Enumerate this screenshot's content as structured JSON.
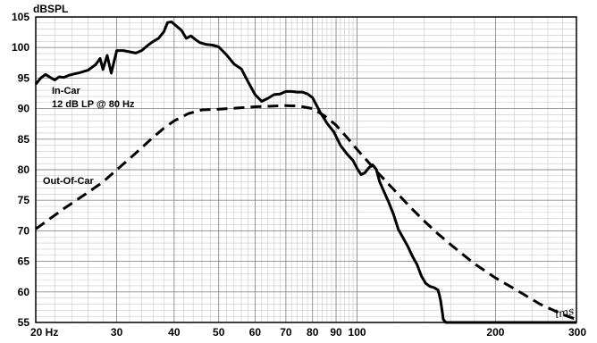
{
  "chart_data": {
    "type": "line",
    "ylabel": "dBSPL",
    "xscale": "log",
    "xlim": [
      20,
      300
    ],
    "ylim": [
      55,
      105
    ],
    "grid": true,
    "x_tick_labels": [
      "20 Hz",
      "30",
      "40",
      "50",
      "60",
      "70",
      "80",
      "90",
      "100",
      "200",
      "300"
    ],
    "x_tick_values": [
      20,
      30,
      40,
      50,
      60,
      70,
      80,
      90,
      100,
      200,
      300
    ],
    "y_tick_values": [
      55,
      60,
      65,
      70,
      75,
      80,
      85,
      90,
      95,
      100,
      105
    ],
    "series": [
      {
        "name": "In-Car",
        "style": "solid",
        "color": "#000000",
        "x": [
          20,
          20.5,
          21,
          21.5,
          22,
          22.5,
          23,
          23.5,
          24,
          25,
          26,
          27,
          27.6,
          28,
          28.6,
          29.2,
          30,
          31,
          32,
          33,
          34,
          35,
          36,
          37,
          38,
          38.7,
          39.5,
          40.5,
          41.5,
          42.5,
          43.5,
          44.5,
          45.5,
          47,
          48.5,
          50,
          52,
          54,
          56,
          58,
          60,
          62,
          64,
          66,
          68,
          70,
          72,
          74,
          76,
          78,
          80,
          83,
          86,
          89,
          92,
          95,
          98,
          100,
          102,
          104,
          106,
          108,
          110,
          112,
          114,
          117,
          120,
          123,
          126,
          129,
          132,
          135,
          138,
          141,
          144,
          147,
          150,
          151,
          152,
          153,
          154,
          156,
          160,
          170,
          200,
          250,
          300
        ],
        "values": [
          94,
          95,
          95.6,
          95.1,
          94.7,
          95.2,
          95.1,
          95.4,
          95.6,
          95.9,
          96.3,
          97.2,
          98.2,
          96.4,
          98.7,
          95.8,
          99.5,
          99.5,
          99.3,
          99.1,
          99.5,
          100.3,
          101,
          101.5,
          102.6,
          104.1,
          104.2,
          103.5,
          102.8,
          101.5,
          101.9,
          101.3,
          100.8,
          100.5,
          100.4,
          100.1,
          98.8,
          97.3,
          96.5,
          94.3,
          92.3,
          91.2,
          91.7,
          92.3,
          92.4,
          92.8,
          92.8,
          92.7,
          92.7,
          92.4,
          91.8,
          89.5,
          87.6,
          86.2,
          84,
          82.6,
          81.5,
          80.2,
          79.2,
          79.5,
          80.3,
          80.8,
          80.1,
          78,
          76.7,
          74.8,
          72.7,
          70.2,
          68.8,
          67.4,
          65.8,
          64.5,
          62.6,
          61.4,
          60.9,
          60.7,
          60.3,
          59.5,
          58.5,
          57,
          55.5,
          55,
          55,
          55,
          55,
          55,
          55
        ]
      },
      {
        "name": "Out-Of-Car",
        "style": "dashed",
        "color": "#000000",
        "x": [
          20,
          23,
          26,
          28,
          30,
          32,
          34,
          36,
          38,
          40,
          43,
          46,
          50,
          55,
          60,
          65,
          70,
          75,
          80,
          85,
          90,
          95,
          100,
          110,
          120,
          130,
          140,
          150,
          160,
          180,
          200,
          220,
          250,
          280,
          300
        ],
        "values": [
          70.3,
          73.6,
          76.3,
          78,
          80,
          81.8,
          83.6,
          85.3,
          86.8,
          88,
          89.2,
          89.8,
          89.9,
          90.1,
          90.3,
          90.4,
          90.5,
          90.4,
          90,
          88.8,
          87.3,
          85.3,
          83.3,
          79.8,
          76.8,
          74,
          71.6,
          69.5,
          67.7,
          64.6,
          62.3,
          60.5,
          58,
          56.3,
          55.5
        ]
      }
    ],
    "annotations": [
      {
        "text": "In-Car",
        "series": "In-Car"
      },
      {
        "text": "12 dB LP @ 80 Hz",
        "series": "In-Car"
      },
      {
        "text": "Out-Of-Car",
        "series": "Out-Of-Car"
      }
    ]
  },
  "logo_text": "lms"
}
